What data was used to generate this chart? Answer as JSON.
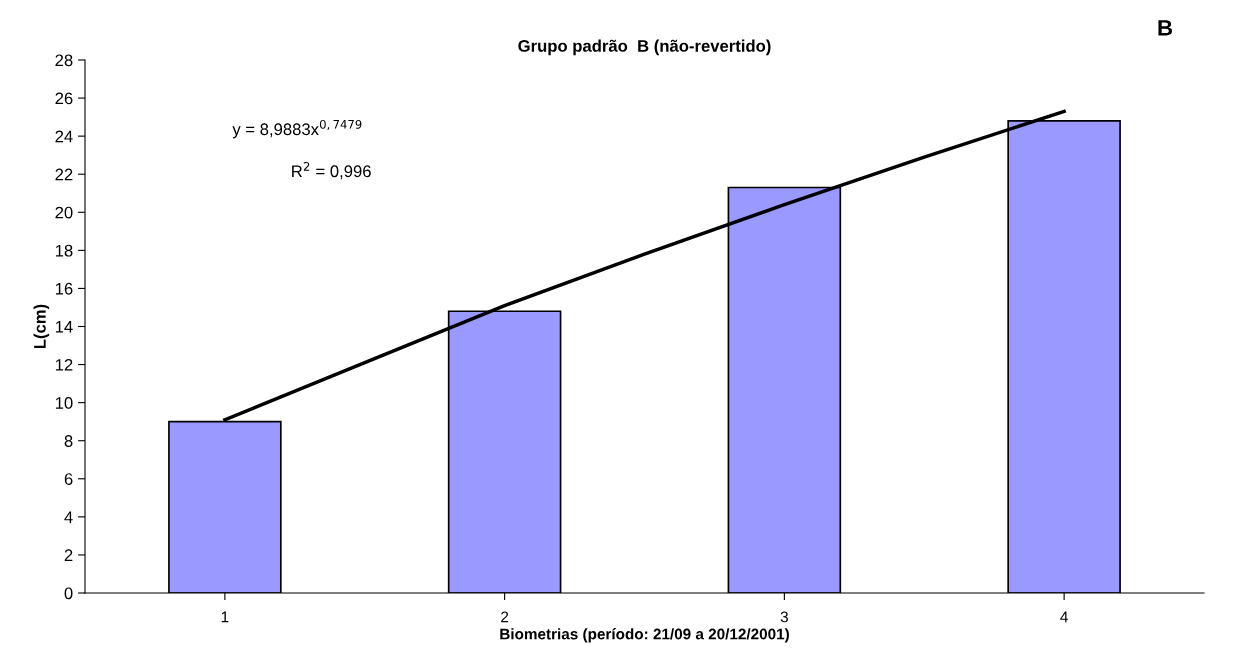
{
  "chart_data": {
    "type": "bar",
    "title": "Grupo padrão  B (não-revertido)",
    "xlabel": "Biometrias (período: 21/09 a 20/12/2001)",
    "ylabel": "L(cm)",
    "x": [
      1,
      2,
      3,
      4
    ],
    "xlim": [
      0.5,
      4.5
    ],
    "xticks": [
      1,
      2,
      3,
      4
    ],
    "ylim": [
      0,
      28
    ],
    "yticks": [
      0,
      2,
      4,
      6,
      8,
      10,
      12,
      14,
      16,
      18,
      20,
      22,
      24,
      26,
      28
    ],
    "grid": false,
    "series": [
      {
        "color": "#9999ff",
        "values": [
          9.0,
          14.8,
          21.3,
          24.8
        ]
      },
      {
        "type": "line",
        "color": "#000000",
        "marker": "none",
        "line_style": "solid",
        "x": [
          1,
          1.5,
          2,
          2.5,
          3,
          3.5,
          4
        ],
        "values": [
          9.1,
          12.1,
          15.1,
          17.8,
          20.4,
          22.9,
          25.3
        ]
      }
    ],
    "annotations": [
      "y = 8,9883x$^{0,7479}$",
      "R$^{2}$ = 0,996",
      "B"
    ]
  }
}
